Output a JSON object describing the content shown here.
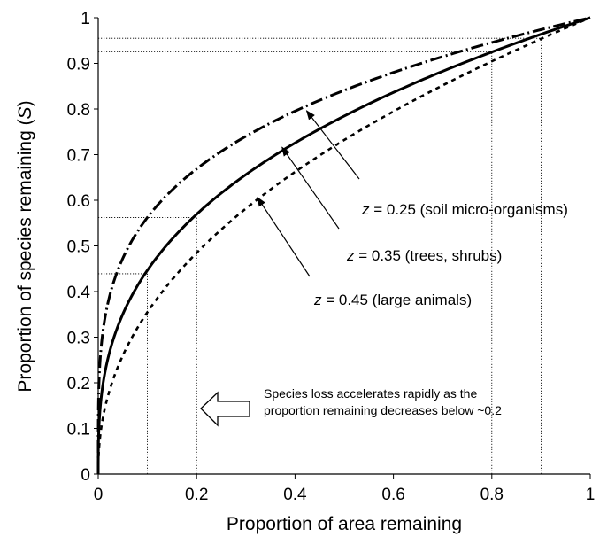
{
  "chart_data": {
    "type": "line",
    "xlabel": "Proportion of area remaining",
    "ylabel_prefix": "Proportion of species remaining (",
    "ylabel_var": "S",
    "ylabel_suffix": ")",
    "xlim": [
      0,
      1
    ],
    "ylim": [
      0,
      1
    ],
    "x_ticks": [
      0,
      0.2,
      0.4,
      0.6,
      0.8,
      1
    ],
    "x_tick_labels": [
      "0",
      "0.2",
      "0.4",
      "0.6",
      "0.8",
      "1"
    ],
    "y_ticks": [
      0,
      0.1,
      0.2,
      0.3,
      0.4,
      0.5,
      0.6,
      0.7,
      0.8,
      0.9,
      1
    ],
    "y_tick_labels": [
      "0",
      "0.1",
      "0.2",
      "0.3",
      "0.4",
      "0.5",
      "0.6",
      "0.7",
      "0.8",
      "0.9",
      "1"
    ],
    "grid": false,
    "series": [
      {
        "z": 0.25,
        "style": "dash-dot",
        "color": "#000000",
        "x": [
          0,
          0.01,
          0.02,
          0.05,
          0.1,
          0.15,
          0.2,
          0.3,
          0.4,
          0.5,
          0.6,
          0.7,
          0.8,
          0.9,
          1
        ],
        "y": [
          0,
          0.316,
          0.376,
          0.473,
          0.562,
          0.622,
          0.669,
          0.74,
          0.795,
          0.841,
          0.88,
          0.915,
          0.946,
          0.974,
          1
        ]
      },
      {
        "z": 0.35,
        "style": "solid",
        "color": "#000000",
        "x": [
          0,
          0.01,
          0.02,
          0.05,
          0.1,
          0.15,
          0.2,
          0.3,
          0.4,
          0.5,
          0.6,
          0.7,
          0.8,
          0.9,
          1
        ],
        "y": [
          0,
          0.2,
          0.254,
          0.351,
          0.447,
          0.515,
          0.569,
          0.656,
          0.726,
          0.785,
          0.836,
          0.883,
          0.925,
          0.964,
          1
        ]
      },
      {
        "z": 0.45,
        "style": "dotted-dash",
        "color": "#000000",
        "x": [
          0,
          0.01,
          0.02,
          0.05,
          0.1,
          0.15,
          0.2,
          0.3,
          0.4,
          0.5,
          0.6,
          0.7,
          0.8,
          0.9,
          1
        ],
        "y": [
          0,
          0.126,
          0.172,
          0.26,
          0.355,
          0.426,
          0.484,
          0.582,
          0.662,
          0.732,
          0.795,
          0.852,
          0.904,
          0.954,
          1
        ]
      }
    ],
    "reference_lines": [
      {
        "x": 0.1,
        "y": 0.439
      },
      {
        "x": 0.2,
        "y": 0.562
      },
      {
        "x": 0.8,
        "y": 0.925
      },
      {
        "x": 0.9,
        "y": 0.955
      }
    ],
    "annotations": [
      {
        "var": "z",
        "text": " = 0.25 (soil micro-organisms)",
        "target_x": 0.42,
        "target_y": 0.8
      },
      {
        "var": "z",
        "text": " = 0.35 (trees, shrubs)",
        "target_x": 0.37,
        "target_y": 0.72
      },
      {
        "var": "z",
        "text": " = 0.45 (large animals)",
        "target_x": 0.32,
        "target_y": 0.61
      }
    ],
    "note_lines": [
      "Species loss accelerates rapidly as the",
      "proportion remaining decreases below ~0.2"
    ]
  }
}
